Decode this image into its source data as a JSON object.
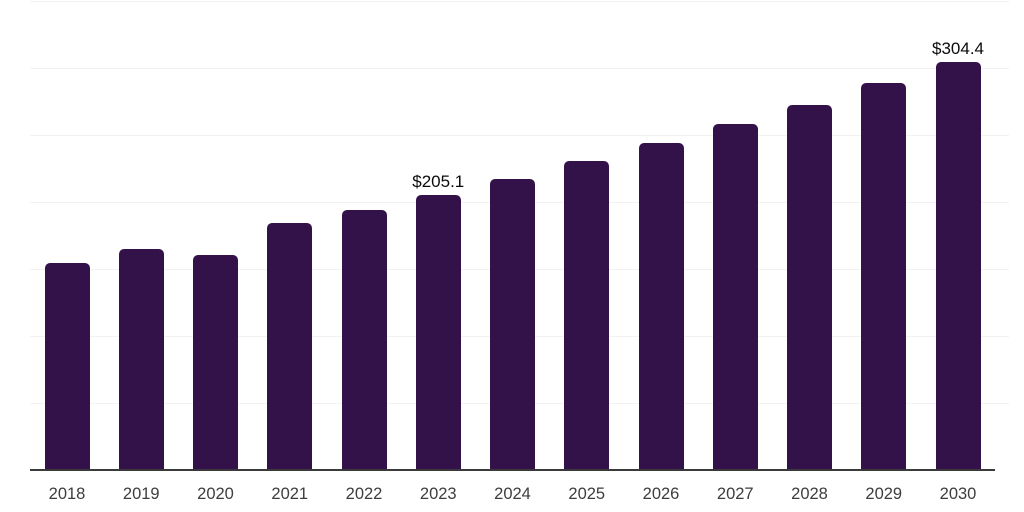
{
  "chart_data": {
    "type": "bar",
    "title": "",
    "xlabel": "",
    "ylabel": "",
    "categories": [
      "2018",
      "2019",
      "2020",
      "2021",
      "2022",
      "2023",
      "2024",
      "2025",
      "2026",
      "2027",
      "2028",
      "2029",
      "2030"
    ],
    "values": [
      154.6,
      164.8,
      160.3,
      184.5,
      194.0,
      205.1,
      217.4,
      230.6,
      244.3,
      258.0,
      272.2,
      288.7,
      304.4
    ],
    "data_labels": [
      "",
      "",
      "",
      "",
      "",
      "$205.1",
      "",
      "",
      "",
      "",
      "",
      "",
      "$304.4"
    ],
    "ylim": [
      0,
      350
    ],
    "gridline_step": 50,
    "grid": "horizontal-only",
    "legend": "none",
    "colors": {
      "bar": "#331249",
      "gridline": "#f2f2f2",
      "axis_line": "#3a3a3a",
      "tick_label": "#3d3d3d",
      "data_label": "#0b0b0b",
      "background": "#ffffff"
    }
  }
}
